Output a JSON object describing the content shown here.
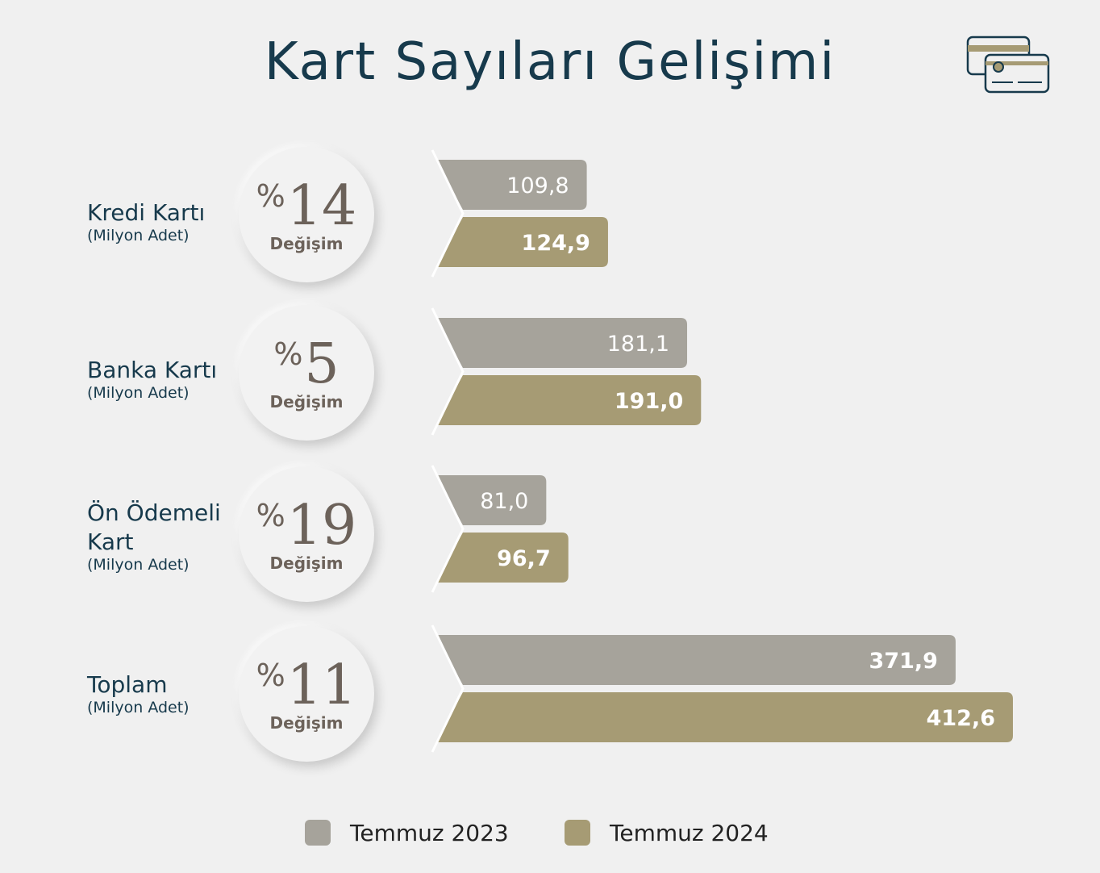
{
  "title": "Kart Sayıları Gelişimi",
  "icon": "credit-cards-icon",
  "colors": {
    "series_2023": "#a6a39b",
    "series_2024": "#a69b74",
    "text_dark": "#173a4c",
    "badge_text": "#6c625a"
  },
  "categories": [
    {
      "name": "Kredi Kartı",
      "unit": "(Milyon Adet)",
      "change_prefix": "%",
      "change_value": "14",
      "change_label": "Değişim"
    },
    {
      "name": "Banka Kartı",
      "unit": "(Milyon Adet)",
      "change_prefix": "%",
      "change_value": "5",
      "change_label": "Değişim"
    },
    {
      "name": "Ön Ödemeli Kart",
      "unit": "(Milyon Adet)",
      "change_prefix": "%",
      "change_value": "19",
      "change_label": "Değişim"
    },
    {
      "name": "Toplam",
      "unit": "(Milyon Adet)",
      "change_prefix": "%",
      "change_value": "11",
      "change_label": "Değişim"
    }
  ],
  "chart_data": {
    "type": "bar",
    "orientation": "horizontal",
    "categories": [
      "Kredi Kartı",
      "Banka Kartı",
      "Ön Ödemeli Kart",
      "Toplam"
    ],
    "series": [
      {
        "name": "Temmuz 2023",
        "values": [
          109.8,
          181.1,
          81.0,
          371.9
        ],
        "labels": [
          "109,8",
          "181,1",
          "81,0",
          "371,9"
        ]
      },
      {
        "name": "Temmuz 2024",
        "values": [
          124.9,
          191.0,
          96.7,
          412.6
        ],
        "labels": [
          "124,9",
          "191,0",
          "96,7",
          "412,6"
        ]
      }
    ],
    "legend_position": "bottom-center",
    "grid": false
  },
  "legend": [
    {
      "label": "Temmuz 2023"
    },
    {
      "label": "Temmuz 2024"
    }
  ]
}
